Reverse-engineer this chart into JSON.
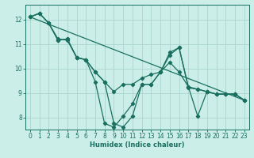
{
  "xlabel": "Humidex (Indice chaleur)",
  "bg_color": "#cceee8",
  "grid_color": "#aad4cc",
  "line_color": "#1a7060",
  "xlim": [
    -0.5,
    23.5
  ],
  "ylim": [
    7.5,
    12.6
  ],
  "yticks": [
    8,
    9,
    10,
    11,
    12
  ],
  "xticks": [
    0,
    1,
    2,
    3,
    4,
    5,
    6,
    7,
    8,
    9,
    10,
    11,
    12,
    13,
    14,
    15,
    16,
    17,
    18,
    19,
    20,
    21,
    22,
    23
  ],
  "line1_x": [
    0,
    1,
    2,
    3,
    4,
    5,
    6,
    7,
    8,
    9,
    10,
    11,
    12,
    13,
    14,
    15,
    16,
    17,
    18,
    19,
    20,
    21,
    22,
    23
  ],
  "line1_y": [
    12.1,
    12.25,
    11.85,
    11.15,
    11.2,
    10.45,
    10.35,
    9.85,
    9.45,
    9.05,
    9.35,
    9.35,
    9.6,
    9.75,
    9.85,
    10.25,
    9.85,
    9.25,
    9.15,
    9.05,
    8.95,
    8.95,
    8.95,
    8.7
  ],
  "line2_x": [
    0,
    1,
    2,
    3,
    4,
    5,
    6,
    7,
    8,
    9,
    10,
    11,
    12,
    13,
    14,
    15,
    16,
    17,
    18,
    19,
    20,
    21,
    22,
    23
  ],
  "line2_y": [
    12.1,
    12.25,
    11.85,
    11.2,
    11.15,
    10.45,
    10.35,
    9.45,
    7.75,
    7.6,
    8.05,
    8.55,
    9.35,
    9.35,
    9.85,
    10.55,
    10.85,
    9.2,
    9.15,
    9.05,
    8.95,
    8.95,
    8.95,
    8.7
  ],
  "line3_x": [
    0,
    23
  ],
  "line3_y": [
    12.1,
    8.7
  ],
  "line4_x": [
    0,
    1,
    2,
    3,
    4,
    5,
    6,
    7,
    8,
    9,
    10,
    11,
    12,
    13,
    14,
    15,
    16,
    17,
    18,
    19,
    20,
    21,
    22,
    23
  ],
  "line4_y": [
    12.1,
    12.25,
    11.85,
    11.15,
    11.2,
    10.45,
    10.35,
    9.85,
    9.45,
    7.75,
    7.6,
    8.05,
    9.35,
    9.35,
    9.85,
    10.65,
    10.85,
    9.25,
    8.05,
    9.05,
    8.95,
    8.95,
    8.95,
    8.7
  ]
}
